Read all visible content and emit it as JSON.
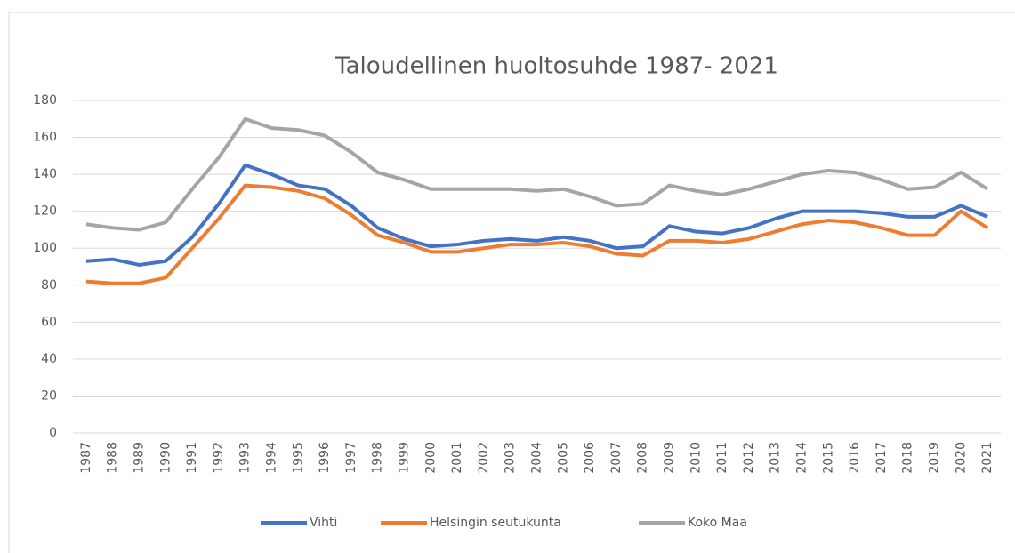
{
  "chart_data": {
    "type": "line",
    "title": "Taloudellinen huoltosuhde 1987- 2021",
    "categories": [
      "1987",
      "1988",
      "1989",
      "1990",
      "1991",
      "1992",
      "1993",
      "1994",
      "1995",
      "1996",
      "1997",
      "1998",
      "1999",
      "2000",
      "2001",
      "2002",
      "2003",
      "2004",
      "2005",
      "2006",
      "2007",
      "2008",
      "2009",
      "2010",
      "2011",
      "2012",
      "2013",
      "2014",
      "2015",
      "2016",
      "2017",
      "2018",
      "2019",
      "2020",
      "2021"
    ],
    "series": [
      {
        "name": "Vihti",
        "color": "#4472c4",
        "values": [
          93,
          94,
          91,
          93,
          106,
          124,
          145,
          140,
          134,
          132,
          123,
          111,
          105,
          101,
          102,
          104,
          105,
          104,
          106,
          104,
          100,
          101,
          112,
          109,
          108,
          111,
          116,
          120,
          120,
          120,
          119,
          117,
          117,
          123,
          117
        ]
      },
      {
        "name": "Helsingin seutukunta",
        "color": "#ed7d31",
        "values": [
          82,
          81,
          81,
          84,
          100,
          116,
          134,
          133,
          131,
          127,
          118,
          107,
          103,
          98,
          98,
          100,
          102,
          102,
          103,
          101,
          97,
          96,
          104,
          104,
          103,
          105,
          109,
          113,
          115,
          114,
          111,
          107,
          107,
          120,
          111
        ]
      },
      {
        "name": "Koko Maa",
        "color": "#a5a5a5",
        "values": [
          113,
          111,
          110,
          114,
          132,
          149,
          170,
          165,
          164,
          161,
          152,
          141,
          137,
          132,
          132,
          132,
          132,
          131,
          132,
          128,
          123,
          124,
          134,
          131,
          129,
          132,
          136,
          140,
          142,
          141,
          137,
          132,
          133,
          141,
          132
        ]
      }
    ],
    "ylim": [
      0,
      180
    ],
    "yticks": [
      0,
      20,
      40,
      60,
      80,
      100,
      120,
      140,
      160,
      180
    ],
    "grid": true,
    "legend": "bottom"
  }
}
